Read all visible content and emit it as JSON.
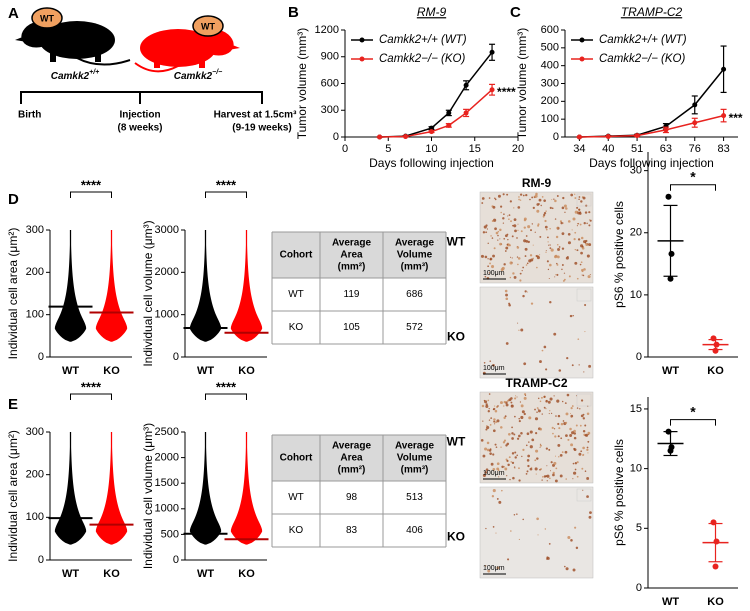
{
  "panel_labels": [
    "A",
    "B",
    "C",
    "D",
    "E"
  ],
  "diagram": {
    "mice": [
      {
        "ear_label": "WT",
        "gene": "Camkk2",
        "genotype": "+/+"
      },
      {
        "ear_label": "WT",
        "gene": "Camkk2",
        "genotype": "−/−"
      }
    ],
    "timeline": [
      {
        "label": "Birth"
      },
      {
        "label": "Injection",
        "sub": "(8 weeks)"
      },
      {
        "label": "Harvest at 1.5cm³",
        "sub": "(9-19 weeks)"
      }
    ]
  },
  "chart_data": [
    {
      "type": "line",
      "title": "RM-9",
      "xlabel": "Days following injection",
      "ylabel": "Tumor volume (mm³)",
      "x": [
        4,
        7,
        10,
        12,
        14,
        17
      ],
      "xlim": [
        0,
        20
      ],
      "xticks": [
        0,
        5,
        10,
        15,
        20
      ],
      "ylim": [
        0,
        1200
      ],
      "yticks": [
        0,
        300,
        600,
        900,
        1200
      ],
      "annotation": "****",
      "series": [
        {
          "name": "Camkk2+/+ (WT)",
          "color": "#000000",
          "values": [
            0,
            10,
            100,
            270,
            580,
            950
          ],
          "errors": [
            0,
            5,
            15,
            30,
            50,
            90
          ]
        },
        {
          "name": "Camkk2−/− (KO)",
          "color": "#e8231f",
          "values": [
            0,
            5,
            60,
            130,
            270,
            530
          ],
          "errors": [
            0,
            3,
            10,
            20,
            40,
            60
          ]
        }
      ]
    },
    {
      "type": "line",
      "title": "TRAMP-C2",
      "xlabel": "Days following injection",
      "ylabel": "Tumor volume (mm³)",
      "categories": [
        34,
        40,
        51,
        63,
        76,
        83
      ],
      "ylim": [
        0,
        600
      ],
      "yticks": [
        0,
        100,
        200,
        300,
        400,
        500,
        600
      ],
      "annotation": "***",
      "series": [
        {
          "name": "Camkk2+/+ (WT)",
          "color": "#000000",
          "values": [
            0,
            5,
            10,
            60,
            180,
            380
          ],
          "errors": [
            0,
            3,
            5,
            15,
            50,
            130
          ]
        },
        {
          "name": "Camkk2−/− (KO)",
          "color": "#e8231f",
          "values": [
            0,
            3,
            8,
            40,
            80,
            120
          ],
          "errors": [
            0,
            2,
            4,
            15,
            25,
            35
          ]
        }
      ]
    },
    {
      "type": "violin",
      "ylabel": "Individual cell area (μm²)",
      "categories": [
        "WT",
        "KO"
      ],
      "colors": [
        "#000000",
        "#ff0000"
      ],
      "values": [
        119,
        105
      ],
      "ylim": [
        0,
        300
      ],
      "yticks": [
        0,
        100,
        200,
        300
      ],
      "annotation": "****"
    },
    {
      "type": "violin",
      "ylabel": "Individual cell volume (μm³)",
      "categories": [
        "WT",
        "KO"
      ],
      "colors": [
        "#000000",
        "#ff0000"
      ],
      "values": [
        686,
        572
      ],
      "ylim": [
        0,
        3000
      ],
      "yticks": [
        0,
        1000,
        2000,
        3000
      ],
      "annotation": "****"
    },
    {
      "type": "violin",
      "ylabel": "Individual cell area (μm²)",
      "categories": [
        "WT",
        "KO"
      ],
      "colors": [
        "#000000",
        "#ff0000"
      ],
      "values": [
        98,
        83
      ],
      "ylim": [
        0,
        300
      ],
      "yticks": [
        0,
        100,
        200,
        300
      ],
      "annotation": "****"
    },
    {
      "type": "violin",
      "ylabel": "Individual cell volume (μm³)",
      "categories": [
        "WT",
        "KO"
      ],
      "colors": [
        "#000000",
        "#ff0000"
      ],
      "values": [
        513,
        406
      ],
      "ylim": [
        0,
        2500
      ],
      "yticks": [
        0,
        500,
        1000,
        1500,
        2000,
        2500
      ],
      "annotation": "****"
    },
    {
      "type": "dot",
      "ylabel": "pS6 % positive cells",
      "categories": [
        "WT",
        "KO"
      ],
      "colors": [
        "#000000",
        "#e8231f"
      ],
      "points": [
        [
          25.8,
          16.6,
          12.6
        ],
        [
          3.0,
          2.0,
          1.0
        ]
      ],
      "means": [
        18.7,
        2.0
      ],
      "sems": [
        5.7,
        0.8
      ],
      "ylim": [
        0,
        33
      ],
      "yticks": [
        0,
        10,
        20,
        30
      ],
      "annotation": "*"
    },
    {
      "type": "dot",
      "ylabel": "pS6 % positive cells",
      "categories": [
        "WT",
        "KO"
      ],
      "colors": [
        "#000000",
        "#e8231f"
      ],
      "points": [
        [
          13.1,
          11.8,
          11.5
        ],
        [
          5.5,
          3.9,
          1.8
        ]
      ],
      "means": [
        12.1,
        3.8
      ],
      "sems": [
        1.0,
        1.6
      ],
      "ylim": [
        0,
        16
      ],
      "yticks": [
        0,
        5,
        10,
        15
      ],
      "annotation": "*"
    }
  ],
  "tables": [
    {
      "header": [
        [
          "Cohort"
        ],
        [
          "Average",
          "Area",
          "(mm²)"
        ],
        [
          "Average",
          "Volume",
          "(mm³)"
        ]
      ],
      "rows": [
        [
          "WT",
          119,
          686
        ],
        [
          "KO",
          105,
          572
        ]
      ]
    },
    {
      "header": [
        [
          "Cohort"
        ],
        [
          "Average",
          "Area",
          "(mm²)"
        ],
        [
          "Average",
          "Volume",
          "(mm³)"
        ]
      ],
      "rows": [
        [
          "WT",
          98,
          513
        ],
        [
          "KO",
          83,
          406
        ]
      ]
    }
  ],
  "micrographs": [
    {
      "title": "RM-9",
      "rows": [
        "WT",
        "KO"
      ],
      "scale": [
        "100μm",
        "100μm"
      ]
    },
    {
      "title": "TRAMP-C2",
      "rows": [
        "WT",
        "KO"
      ],
      "scale": [
        "100μm",
        "100μm"
      ]
    }
  ]
}
